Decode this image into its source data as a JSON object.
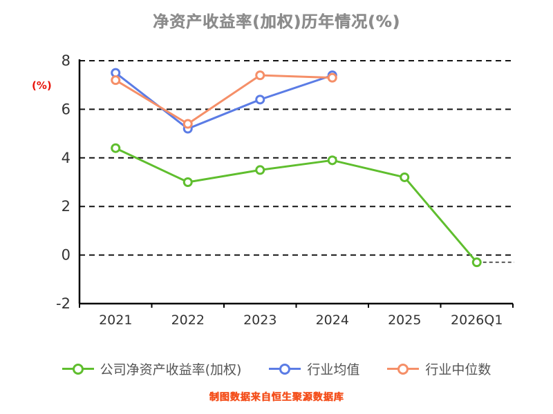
{
  "title": "净资产收益率(加权)历年情况(%)",
  "y_axis_label": "(%)",
  "footer": "制图数据来自恒生聚源数据库",
  "chart_data": {
    "type": "line",
    "categories": [
      "2021",
      "2022",
      "2023",
      "2024",
      "2025",
      "2026Q1"
    ],
    "series": [
      {
        "name": "公司净资产收益率(加权)",
        "color": "#5fbe2e",
        "values": [
          4.4,
          3.0,
          3.5,
          3.9,
          3.2,
          -0.3
        ],
        "trailing_dash": true
      },
      {
        "name": "行业均值",
        "color": "#5b7ce5",
        "values": [
          7.5,
          5.2,
          6.4,
          7.4,
          null,
          null
        ],
        "trailing_dash": false
      },
      {
        "name": "行业中位数",
        "color": "#f58f68",
        "values": [
          7.2,
          5.4,
          7.4,
          7.3,
          null,
          null
        ],
        "trailing_dash": false
      }
    ],
    "ylim": [
      -2,
      8
    ],
    "yticks": [
      -2,
      0,
      2,
      4,
      6,
      8
    ],
    "grid": "dashed-horizontal",
    "legend_position": "bottom",
    "axis_color": "#000000",
    "tick_label_color": "#333333"
  }
}
